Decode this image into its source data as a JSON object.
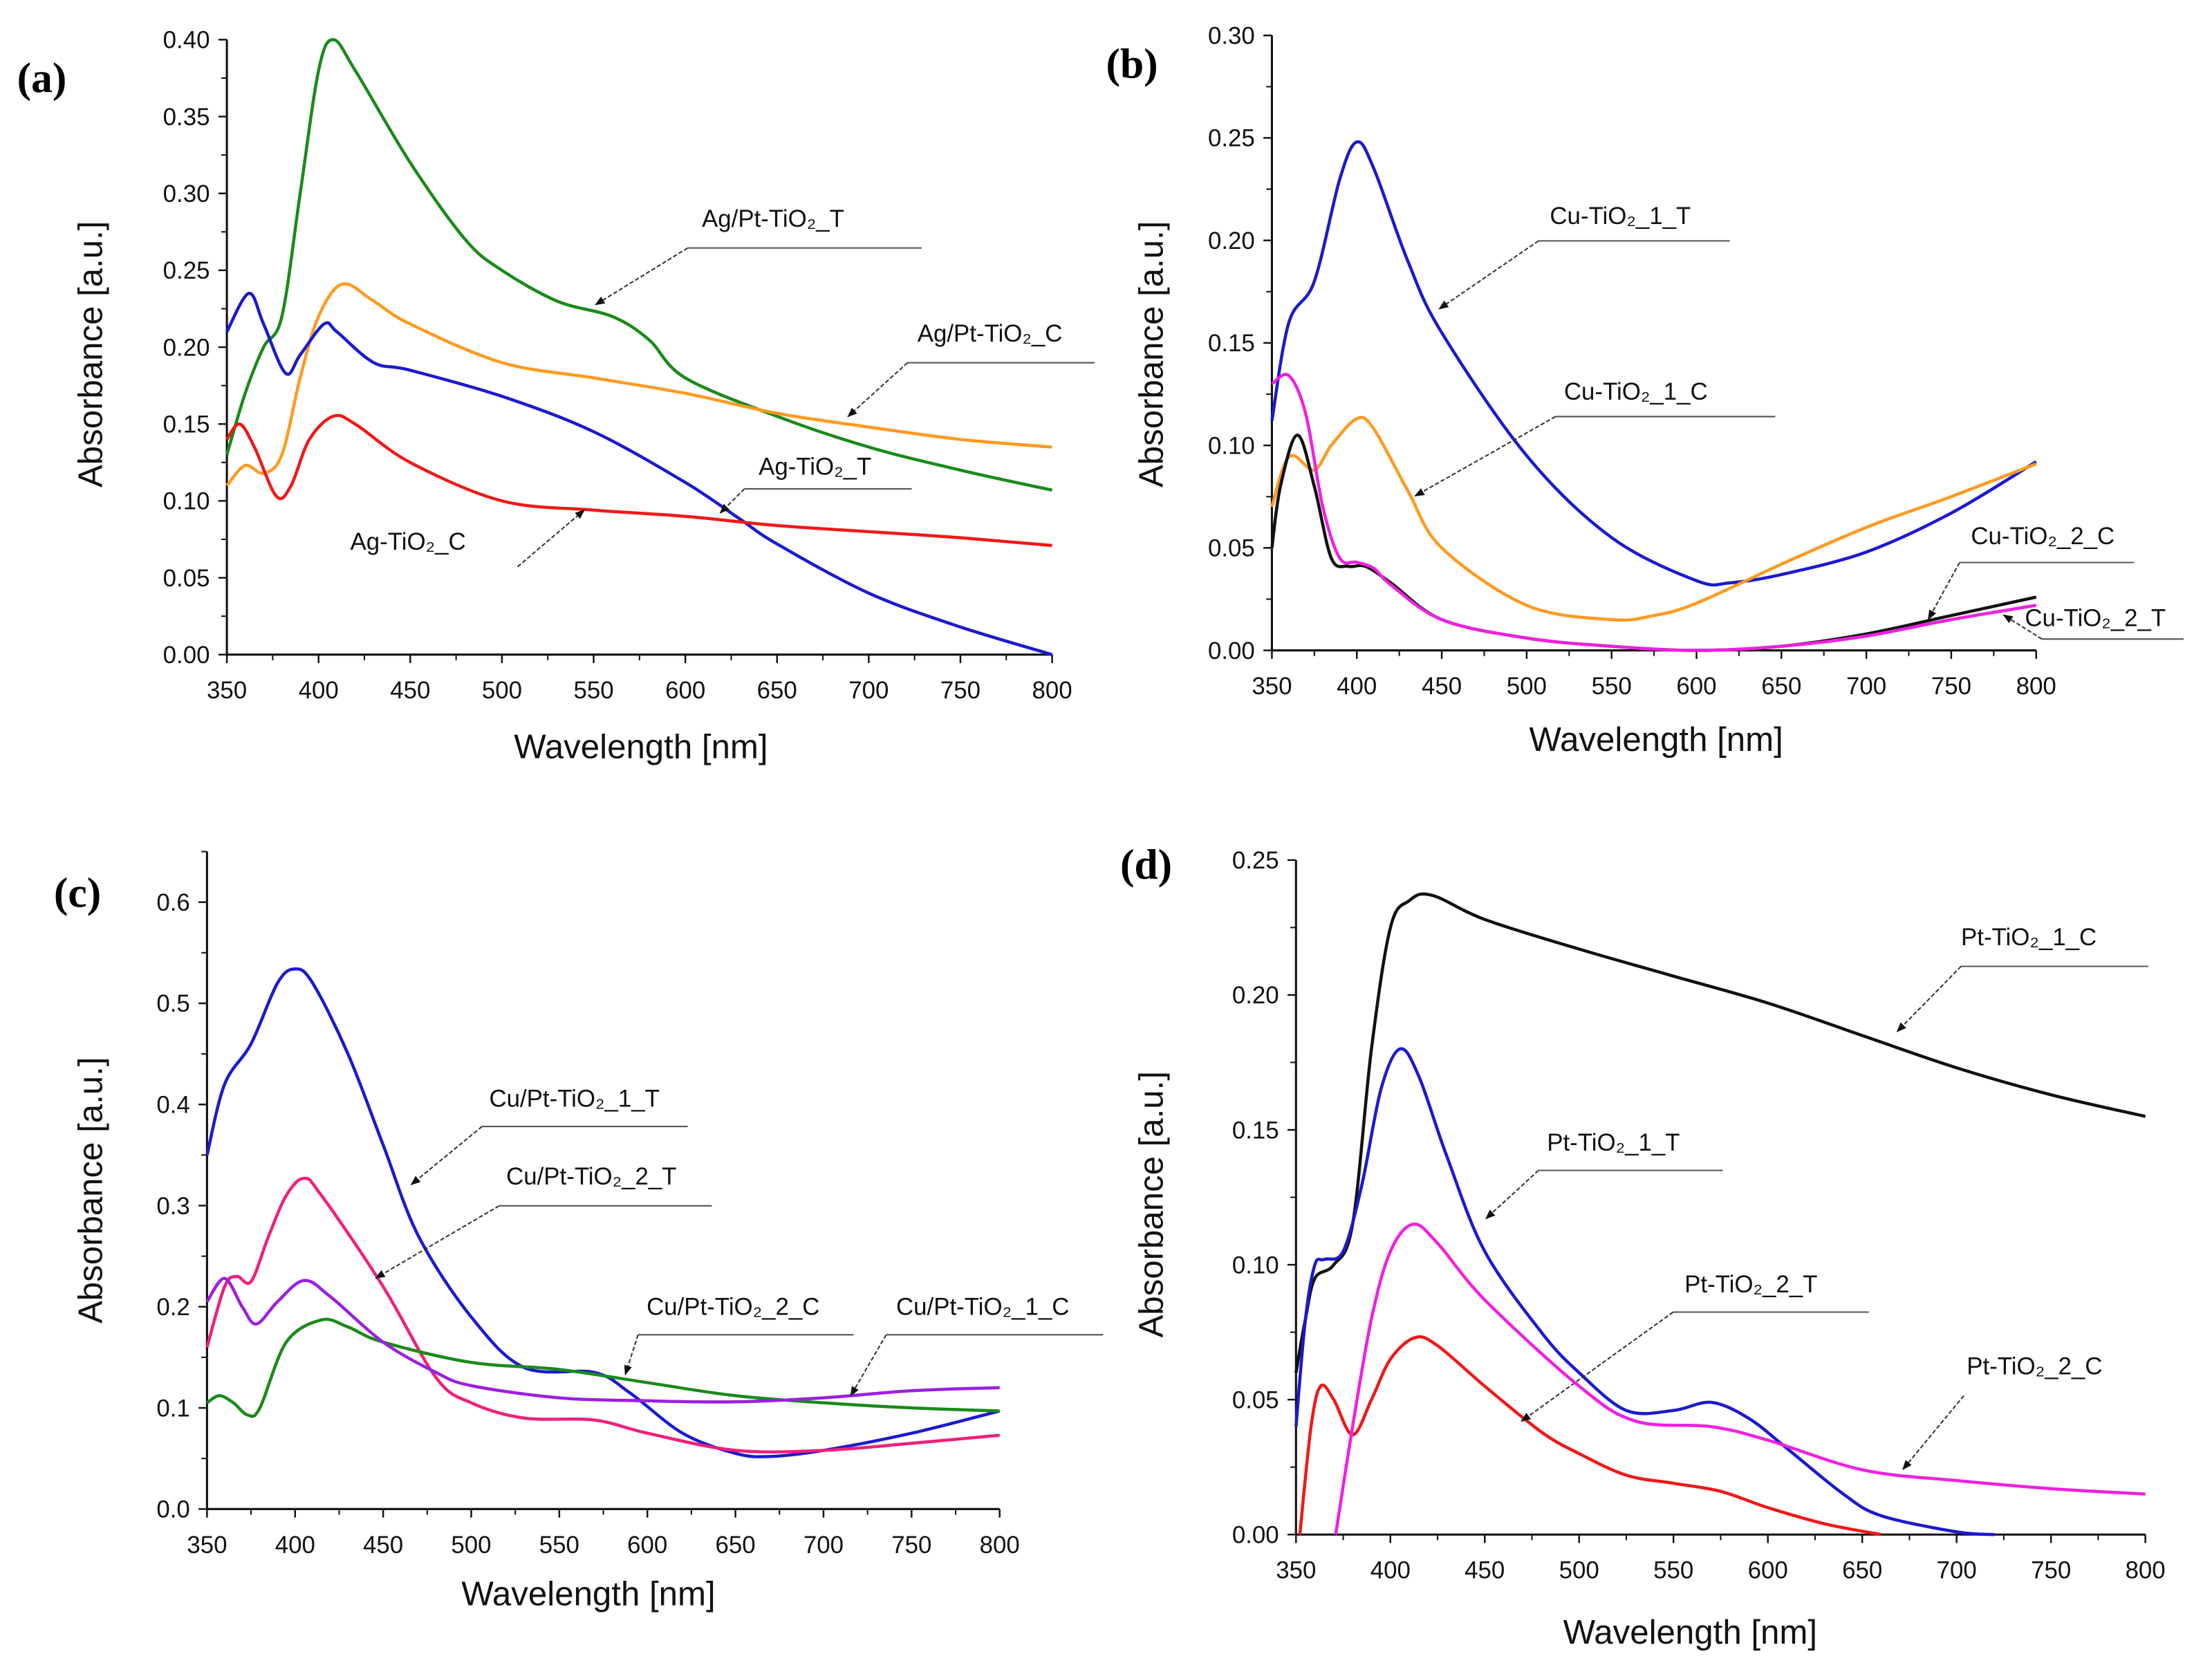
{
  "chart_data": [
    {
      "panel": "(a)",
      "type": "line",
      "xlabel": "Wavelength [nm]",
      "ylabel": "Absorbance [a.u.]",
      "xlim": [
        350,
        800
      ],
      "ylim": [
        0,
        0.4
      ],
      "xticks": [
        "350",
        "400",
        "450",
        "500",
        "550",
        "600",
        "650",
        "700",
        "750",
        "800"
      ],
      "yticks": [
        "0.00",
        "0.05",
        "0.10",
        "0.15",
        "0.20",
        "0.25",
        "0.30",
        "0.35",
        "0.40"
      ],
      "series": [
        {
          "name": "Ag/Pt-TiO₂_T",
          "color": "#1a8a1a",
          "x": [
            350,
            360,
            370,
            380,
            390,
            400,
            408,
            420,
            450,
            480,
            500,
            530,
            560,
            580,
            600,
            650,
            700,
            750,
            800
          ],
          "y": [
            0.13,
            0.17,
            0.2,
            0.22,
            0.3,
            0.38,
            0.4,
            0.38,
            0.32,
            0.27,
            0.25,
            0.23,
            0.22,
            0.205,
            0.18,
            0.155,
            0.135,
            0.12,
            0.107
          ]
        },
        {
          "name": "Ag/Pt-TiO₂_C",
          "color": "#ff9a20",
          "x": [
            350,
            360,
            370,
            380,
            390,
            400,
            413,
            430,
            450,
            500,
            550,
            600,
            650,
            700,
            750,
            800
          ],
          "y": [
            0.11,
            0.123,
            0.118,
            0.13,
            0.18,
            0.22,
            0.241,
            0.23,
            0.215,
            0.19,
            0.18,
            0.17,
            0.157,
            0.148,
            0.14,
            0.135
          ]
        },
        {
          "name": "Ag-TiO₂_T",
          "color": "#1a1ad0",
          "x": [
            350,
            362,
            370,
            382,
            390,
            403,
            410,
            430,
            450,
            500,
            550,
            600,
            630,
            650,
            700,
            750,
            800
          ],
          "y": [
            0.21,
            0.235,
            0.215,
            0.183,
            0.195,
            0.215,
            0.21,
            0.19,
            0.185,
            0.168,
            0.145,
            0.112,
            0.088,
            0.072,
            0.04,
            0.018,
            0.0
          ]
        },
        {
          "name": "Ag-TiO₂_C",
          "color": "#f01818",
          "x": [
            350,
            357,
            365,
            377,
            385,
            395,
            408,
            420,
            450,
            500,
            550,
            600,
            650,
            700,
            750,
            800
          ],
          "y": [
            0.14,
            0.15,
            0.135,
            0.103,
            0.11,
            0.14,
            0.155,
            0.15,
            0.125,
            0.1,
            0.094,
            0.09,
            0.084,
            0.08,
            0.076,
            0.071
          ]
        }
      ]
    },
    {
      "panel": "(b)",
      "type": "line",
      "xlabel": "Wavelength [nm]",
      "ylabel": "Absorbance [a.u.]",
      "xlim": [
        350,
        800
      ],
      "ylim": [
        0,
        0.3
      ],
      "xticks": [
        "350",
        "400",
        "450",
        "500",
        "550",
        "600",
        "650",
        "700",
        "750",
        "800"
      ],
      "yticks": [
        "0.00",
        "0.05",
        "0.10",
        "0.15",
        "0.20",
        "0.25",
        "0.30"
      ],
      "series": [
        {
          "name": "Cu-TiO₂_1_T",
          "color": "#1a1ad0",
          "x": [
            350,
            360,
            375,
            390,
            400,
            410,
            430,
            450,
            500,
            550,
            600,
            620,
            650,
            700,
            750,
            800
          ],
          "y": [
            0.112,
            0.16,
            0.18,
            0.23,
            0.248,
            0.235,
            0.19,
            0.155,
            0.095,
            0.055,
            0.034,
            0.033,
            0.037,
            0.048,
            0.067,
            0.092
          ]
        },
        {
          "name": "Cu-TiO₂_1_C",
          "color": "#ff9a20",
          "x": [
            350,
            357,
            363,
            375,
            385,
            400,
            410,
            430,
            450,
            500,
            550,
            575,
            600,
            650,
            700,
            750,
            800
          ],
          "y": [
            0.07,
            0.09,
            0.095,
            0.088,
            0.1,
            0.113,
            0.108,
            0.078,
            0.05,
            0.022,
            0.015,
            0.017,
            0.023,
            0.042,
            0.06,
            0.075,
            0.091
          ]
        },
        {
          "name": "Cu-TiO₂_2_C",
          "color": "#111111",
          "x": [
            350,
            355,
            365,
            375,
            385,
            395,
            405,
            420,
            450,
            500,
            550,
            600,
            650,
            700,
            750,
            800
          ],
          "y": [
            0.05,
            0.08,
            0.105,
            0.08,
            0.045,
            0.041,
            0.041,
            0.033,
            0.015,
            0.006,
            0.002,
            0.0,
            0.002,
            0.008,
            0.017,
            0.026
          ]
        },
        {
          "name": "Cu-TiO₂_2_T",
          "color": "#f020e0",
          "x": [
            350,
            360,
            370,
            380,
            390,
            400,
            410,
            420,
            450,
            500,
            550,
            600,
            650,
            700,
            750,
            800
          ],
          "y": [
            0.13,
            0.134,
            0.115,
            0.07,
            0.045,
            0.043,
            0.04,
            0.032,
            0.015,
            0.006,
            0.002,
            0.0,
            0.002,
            0.007,
            0.015,
            0.022
          ]
        }
      ]
    },
    {
      "panel": "(c)",
      "type": "line",
      "xlabel": "Wavelength [nm]",
      "ylabel": "Absorbance [a.u.]",
      "xlim": [
        350,
        800
      ],
      "ylim": [
        0,
        0.65
      ],
      "xticks": [
        "350",
        "400",
        "450",
        "500",
        "550",
        "600",
        "650",
        "700",
        "750",
        "800"
      ],
      "yticks": [
        "0.0",
        "0.1",
        "0.2",
        "0.3",
        "0.4",
        "0.5",
        "0.6"
      ],
      "series": [
        {
          "name": "Cu/Pt-TiO₂_1_T",
          "color": "#1a1ad0",
          "x": [
            350,
            360,
            375,
            390,
            400,
            410,
            430,
            450,
            470,
            500,
            530,
            570,
            590,
            620,
            650,
            670,
            700,
            750,
            800
          ],
          "y": [
            0.35,
            0.42,
            0.46,
            0.52,
            0.534,
            0.52,
            0.45,
            0.36,
            0.27,
            0.19,
            0.14,
            0.135,
            0.115,
            0.075,
            0.055,
            0.052,
            0.058,
            0.075,
            0.097
          ]
        },
        {
          "name": "Cu/Pt-TiO₂_2_T",
          "color": "#f0207a",
          "x": [
            350,
            360,
            367,
            375,
            385,
            395,
            405,
            415,
            450,
            480,
            500,
            530,
            570,
            600,
            650,
            700,
            750,
            800
          ],
          "y": [
            0.16,
            0.22,
            0.23,
            0.225,
            0.27,
            0.31,
            0.327,
            0.31,
            0.22,
            0.13,
            0.105,
            0.09,
            0.088,
            0.075,
            0.058,
            0.058,
            0.065,
            0.073
          ]
        },
        {
          "name": "Cu/Pt-TiO₂_2_C",
          "color": "#1a8a1a",
          "x": [
            350,
            357,
            365,
            373,
            380,
            395,
            415,
            430,
            450,
            500,
            550,
            600,
            650,
            700,
            750,
            800
          ],
          "y": [
            0.105,
            0.112,
            0.105,
            0.093,
            0.1,
            0.165,
            0.187,
            0.18,
            0.165,
            0.145,
            0.138,
            0.125,
            0.112,
            0.105,
            0.1,
            0.097
          ]
        },
        {
          "name": "Cu/Pt-TiO₂_1_C",
          "color": "#9a20e0",
          "x": [
            350,
            360,
            370,
            378,
            390,
            405,
            420,
            450,
            480,
            500,
            550,
            600,
            650,
            700,
            750,
            800
          ],
          "y": [
            0.205,
            0.228,
            0.2,
            0.183,
            0.205,
            0.226,
            0.21,
            0.165,
            0.135,
            0.122,
            0.11,
            0.107,
            0.106,
            0.11,
            0.117,
            0.12
          ]
        }
      ]
    },
    {
      "panel": "(d)",
      "type": "line",
      "xlabel": "Wavelength [nm]",
      "ylabel": "Absorbance [a.u.]",
      "xlim": [
        350,
        800
      ],
      "ylim": [
        0,
        0.25
      ],
      "xticks": [
        "350",
        "400",
        "450",
        "500",
        "550",
        "600",
        "650",
        "700",
        "750",
        "800"
      ],
      "yticks": [
        "0.00",
        "0.05",
        "0.10",
        "0.15",
        "0.20",
        "0.25"
      ],
      "series": [
        {
          "name": "Pt-TiO₂_1_C",
          "color": "#111111",
          "x": [
            350,
            355,
            360,
            370,
            380,
            390,
            400,
            410,
            422,
            450,
            500,
            550,
            600,
            650,
            700,
            750,
            800
          ],
          "y": [
            0.06,
            0.08,
            0.095,
            0.1,
            0.115,
            0.18,
            0.225,
            0.235,
            0.237,
            0.228,
            0.217,
            0.207,
            0.197,
            0.185,
            0.173,
            0.163,
            0.155
          ]
        },
        {
          "name": "Pt-TiO₂_1_T",
          "color": "#1a1ad0",
          "x": [
            350,
            355,
            360,
            365,
            375,
            385,
            395,
            405,
            415,
            430,
            450,
            480,
            500,
            525,
            550,
            570,
            590,
            610,
            640,
            660,
            700,
            720
          ],
          "y": [
            0.04,
            0.08,
            0.1,
            0.102,
            0.105,
            0.13,
            0.165,
            0.18,
            0.17,
            0.14,
            0.105,
            0.075,
            0.06,
            0.046,
            0.046,
            0.049,
            0.043,
            0.032,
            0.015,
            0.007,
            0.001,
            0.0
          ]
        },
        {
          "name": "Pt-TiO₂_2_T",
          "color": "#f01818",
          "x": [
            352,
            358,
            363,
            370,
            380,
            390,
            400,
            413,
            425,
            450,
            480,
            500,
            525,
            550,
            575,
            600,
            630,
            660
          ],
          "y": [
            0.0,
            0.04,
            0.055,
            0.05,
            0.037,
            0.05,
            0.065,
            0.073,
            0.07,
            0.055,
            0.038,
            0.03,
            0.022,
            0.019,
            0.016,
            0.01,
            0.004,
            0.0
          ]
        },
        {
          "name": "Pt-TiO₂_2_C",
          "color": "#f020e0",
          "x": [
            371,
            380,
            390,
            400,
            412,
            425,
            450,
            500,
            530,
            570,
            600,
            650,
            700,
            750,
            800
          ],
          "y": [
            0.0,
            0.04,
            0.08,
            0.105,
            0.115,
            0.108,
            0.087,
            0.055,
            0.042,
            0.04,
            0.035,
            0.024,
            0.02,
            0.017,
            0.015
          ]
        }
      ]
    }
  ]
}
